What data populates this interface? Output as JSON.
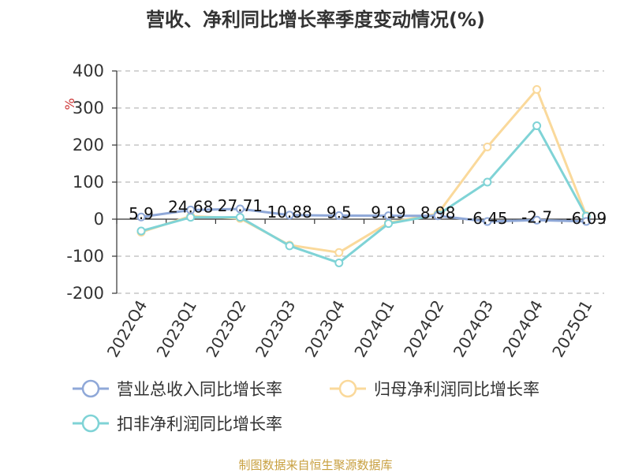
{
  "chart_data": {
    "type": "line",
    "title": "营收、净利同比增长率季度变动情况(%)",
    "ylabel": "%",
    "xlabel": "",
    "categories": [
      "2022Q4",
      "2023Q1",
      "2023Q2",
      "2023Q3",
      "2023Q4",
      "2024Q1",
      "2024Q2",
      "2024Q3",
      "2024Q4",
      "2025Q1"
    ],
    "ylim": [
      -200,
      400
    ],
    "yticks": [
      400,
      300,
      200,
      100,
      0,
      -100,
      -200
    ],
    "grid": true,
    "legend_position": "bottom",
    "series": [
      {
        "name": "营业总收入同比增长率",
        "color": "#8fa8d8",
        "values": [
          5.9,
          24.68,
          27.71,
          10.88,
          9.5,
          9.19,
          8.98,
          -6.45,
          -2.7,
          -6.09
        ],
        "labels": [
          "5.9",
          "24.68",
          "27.71",
          "10.88",
          "9.5",
          "9.19",
          "8.98",
          "-6.45",
          "-2.7",
          "-6.09"
        ]
      },
      {
        "name": "归母净利润同比增长率",
        "color": "#fad99b",
        "values": [
          -35,
          8,
          2,
          -70,
          -90,
          -10,
          15,
          195,
          350,
          10
        ]
      },
      {
        "name": "扣非净利润同比增长率",
        "color": "#7fd3d6",
        "values": [
          -32,
          5,
          5,
          -72,
          -118,
          -12,
          12,
          100,
          252,
          8
        ]
      }
    ]
  },
  "source": "制图数据来自恒生聚源数据库"
}
